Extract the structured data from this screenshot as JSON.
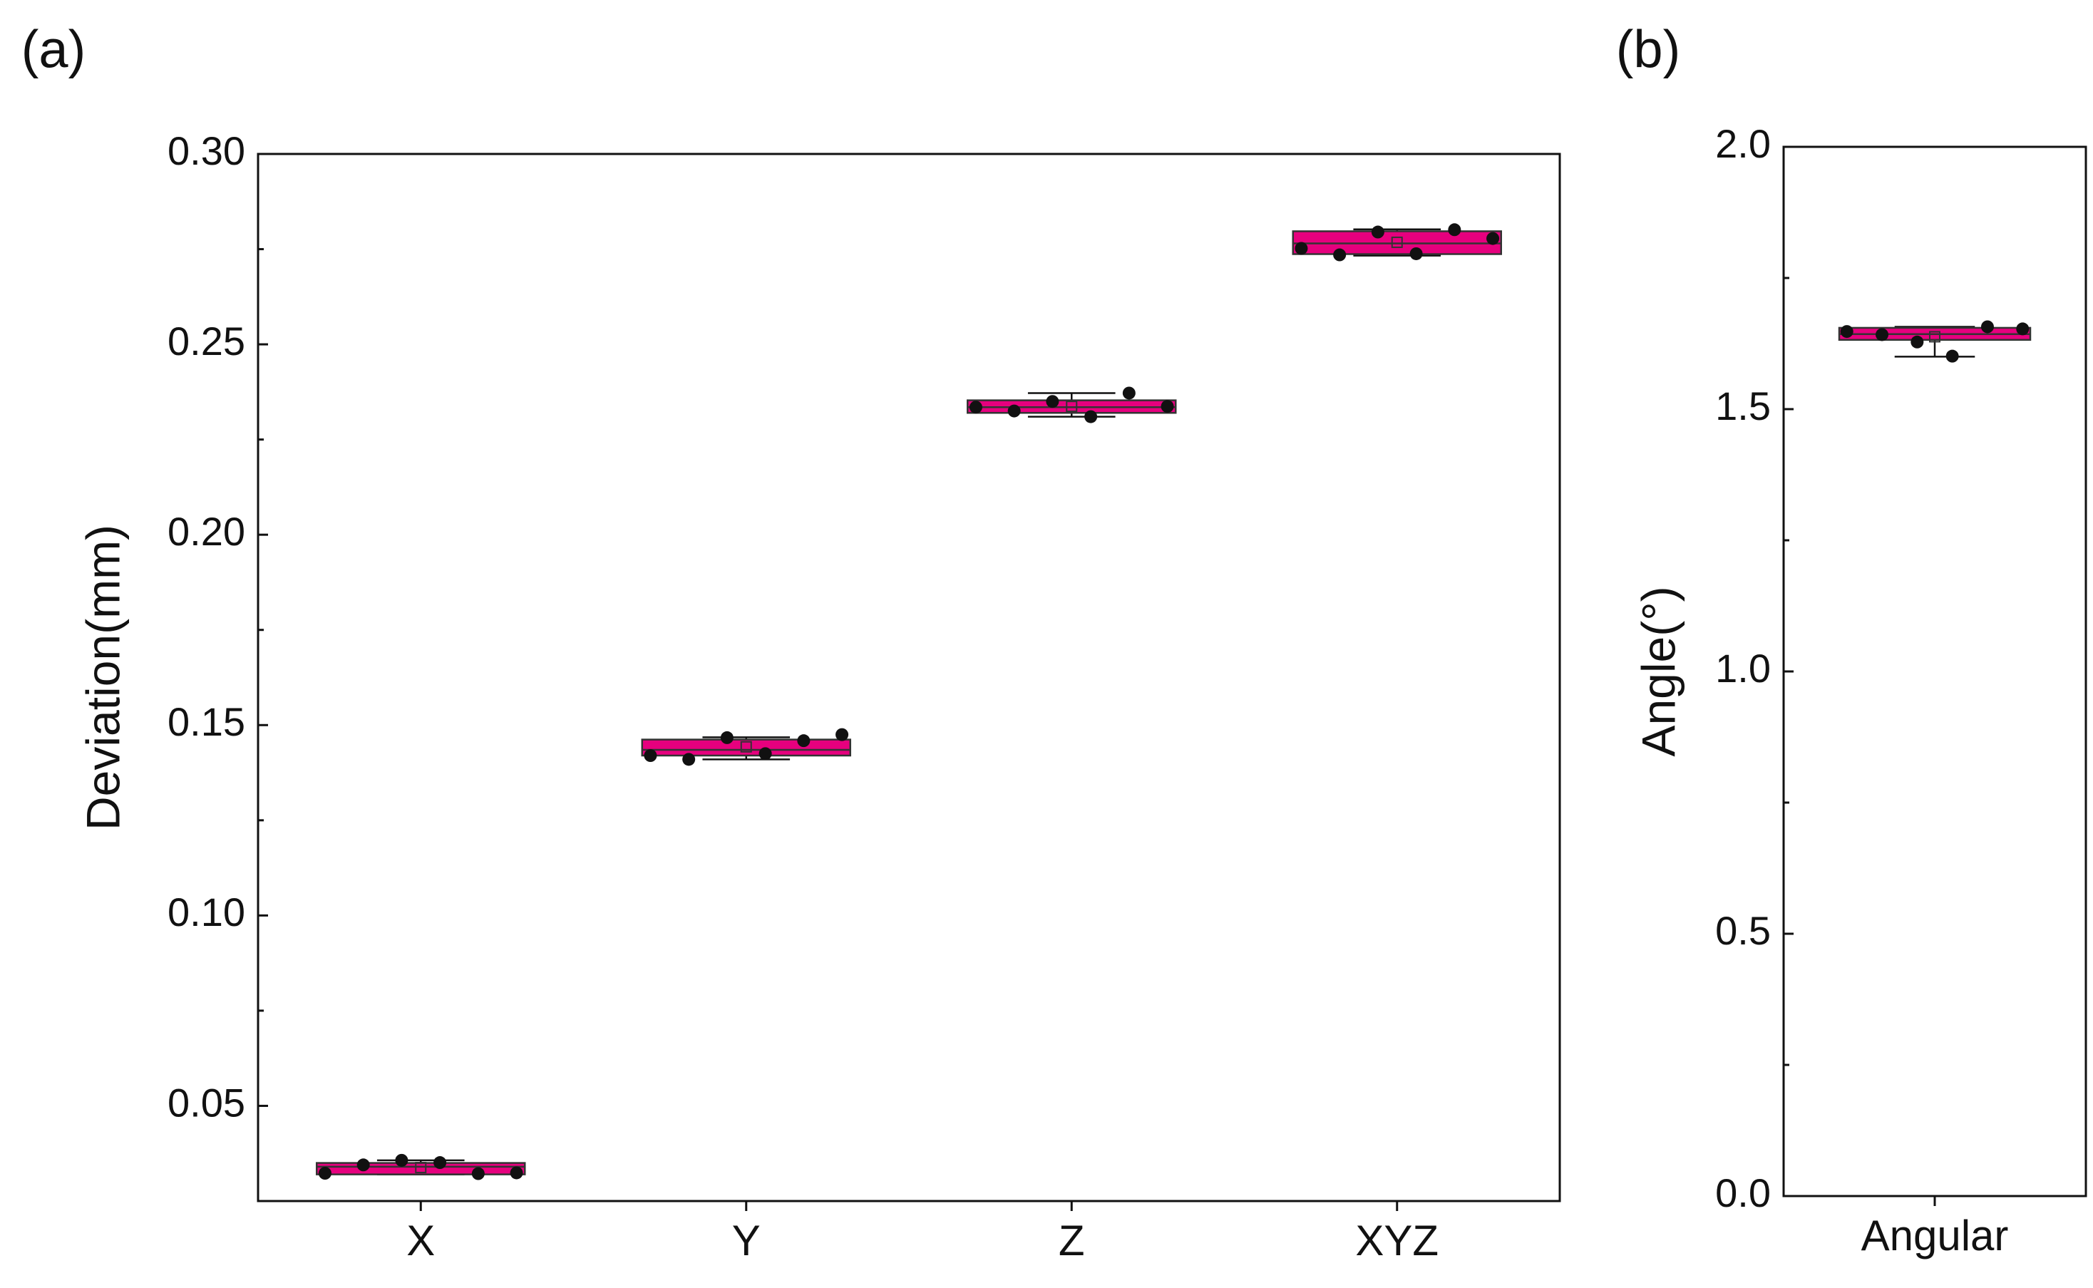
{
  "chart_data": [
    {
      "type": "box",
      "panel_label": "(a)",
      "title": "",
      "xlabel": "",
      "ylabel": "Deviation(mm)",
      "ylim": [
        0.025,
        0.3
      ],
      "yticks": [
        "0.05",
        "0.10",
        "0.15",
        "0.20",
        "0.25",
        "0.30"
      ],
      "grid": false,
      "categories": [
        "X",
        "Y",
        "Z",
        "XYZ"
      ],
      "boxes": [
        {
          "category": "X",
          "q1": 0.032,
          "median": 0.034,
          "q3": 0.035,
          "whisker_low": 0.032,
          "whisker_high": 0.0357,
          "mean": 0.0338,
          "points": [
            0.0323,
            0.0345,
            0.0357,
            0.0351,
            0.0322,
            0.0324
          ]
        },
        {
          "category": "Y",
          "q1": 0.142,
          "median": 0.1435,
          "q3": 0.1462,
          "whisker_low": 0.141,
          "whisker_high": 0.1468,
          "mean": 0.1443,
          "points": [
            0.142,
            0.141,
            0.1467,
            0.1425,
            0.1459,
            0.1475
          ]
        },
        {
          "category": "Z",
          "q1": 0.232,
          "median": 0.2335,
          "q3": 0.2353,
          "whisker_low": 0.231,
          "whisker_high": 0.2372,
          "mean": 0.2337,
          "points": [
            0.2335,
            0.2325,
            0.235,
            0.231,
            0.2372,
            0.2337
          ]
        },
        {
          "category": "XYZ",
          "q1": 0.2737,
          "median": 0.2765,
          "q3": 0.2797,
          "whisker_low": 0.2733,
          "whisker_high": 0.2802,
          "mean": 0.2768,
          "points": [
            0.2752,
            0.2735,
            0.2795,
            0.2738,
            0.2801,
            0.2778
          ]
        }
      ]
    },
    {
      "type": "box",
      "panel_label": "(b)",
      "title": "",
      "xlabel": "",
      "ylabel": "Angle(°)",
      "ylim": [
        0.0,
        2.0
      ],
      "yticks": [
        "0.0",
        "0.5",
        "1.0",
        "1.5",
        "2.0"
      ],
      "grid": false,
      "categories": [
        "Angular"
      ],
      "boxes": [
        {
          "category": "Angular",
          "q1": 1.632,
          "median": 1.643,
          "q3": 1.655,
          "whisker_low": 1.6,
          "whisker_high": 1.657,
          "mean": 1.638,
          "points": [
            1.648,
            1.642,
            1.628,
            1.601,
            1.657,
            1.653
          ]
        }
      ]
    }
  ],
  "colors": {
    "box_fill": "#e6007e",
    "box_edge": "#333333",
    "point": "#111111",
    "axis": "#111111"
  }
}
